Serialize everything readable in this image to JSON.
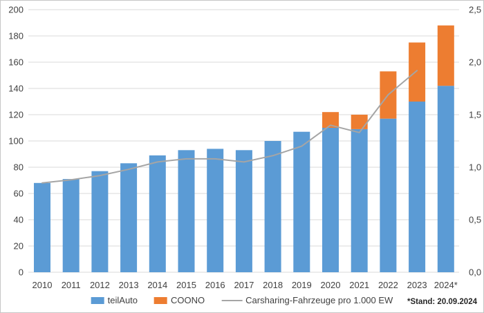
{
  "chart_data": {
    "type": "bar",
    "variant": "stacked-columns-with-line",
    "categories": [
      "2010",
      "2011",
      "2012",
      "2013",
      "2014",
      "2015",
      "2016",
      "2017",
      "2018",
      "2019",
      "2020",
      "2021",
      "2022",
      "2023",
      "2024*"
    ],
    "series": [
      {
        "name": "teilAuto",
        "kind": "bar",
        "color": "#5B9BD5",
        "values": [
          68,
          71,
          77,
          83,
          89,
          93,
          94,
          93,
          100,
          107,
          110,
          109,
          117,
          130,
          142
        ]
      },
      {
        "name": "COONO",
        "kind": "bar",
        "color": "#ED7D31",
        "values": [
          0,
          0,
          0,
          0,
          0,
          0,
          0,
          0,
          0,
          0,
          12,
          11,
          36,
          45,
          46
        ]
      },
      {
        "name": "Carsharing-Fahrzeuge pro 1.000 EW",
        "kind": "line",
        "color": "#A5A5A5",
        "axis": "right",
        "values": [
          0.85,
          0.88,
          0.92,
          0.98,
          1.05,
          1.08,
          1.08,
          1.05,
          1.11,
          1.2,
          1.4,
          1.33,
          1.69,
          1.92,
          null
        ]
      }
    ],
    "left_axis": {
      "min": 0,
      "max": 200,
      "step": 20,
      "ticks": [
        "0",
        "20",
        "40",
        "60",
        "80",
        "100",
        "120",
        "140",
        "160",
        "180",
        "200"
      ]
    },
    "right_axis": {
      "min": 0,
      "max": 2.5,
      "step": 0.5,
      "ticks": [
        "0,0",
        "0,5",
        "1,0",
        "1,5",
        "2,0",
        "2,5"
      ]
    },
    "grid": true,
    "grid_color": "#D9D9D9",
    "legend_position": "bottom",
    "footnote": "*Stand: 20.09.2024"
  }
}
